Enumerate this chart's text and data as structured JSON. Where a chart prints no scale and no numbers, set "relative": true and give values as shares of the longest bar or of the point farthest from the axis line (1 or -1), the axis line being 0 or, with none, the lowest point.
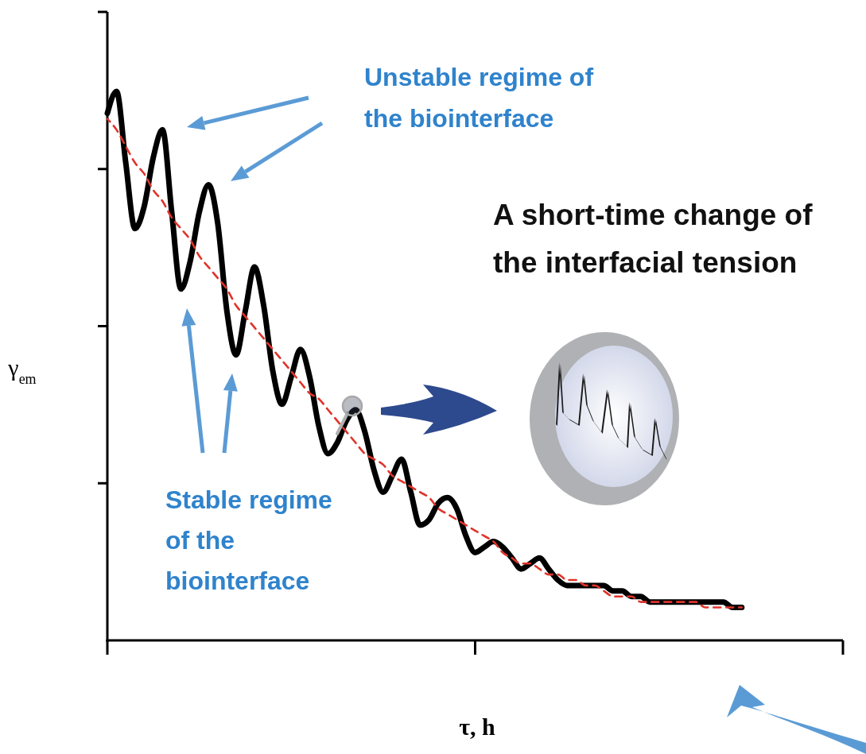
{
  "chart_data": {
    "type": "line",
    "relative": true,
    "xlabel": "τ, h",
    "ylabel": "γ$_{em}$",
    "annotations": [
      "Unstable regime of the biointerface",
      "Stable regime of the biointerface",
      "A short-time change of the interfacial tension"
    ],
    "categories": [
      null,
      null,
      null,
      null,
      null,
      null,
      null,
      null,
      null,
      null,
      null,
      null,
      null,
      null,
      null,
      null,
      null,
      null,
      null,
      null,
      null,
      null,
      null,
      null,
      null,
      null,
      null,
      null,
      null,
      null,
      null,
      null,
      null,
      null,
      null,
      null,
      null,
      null,
      null,
      null,
      null,
      null,
      null,
      null,
      null,
      null,
      null,
      null,
      null,
      null,
      null,
      null,
      null,
      null,
      null,
      null,
      null,
      null,
      null,
      null,
      null,
      null,
      null,
      null,
      null,
      null,
      null,
      null,
      null,
      null,
      null,
      null,
      null,
      null,
      null,
      null,
      null,
      null,
      null,
      null,
      null
    ],
    "series": [
      {
        "color": "#000000",
        "line_style": "solid",
        "values": [
          0.96,
          1.0,
          0.87,
          0.75,
          0.79,
          0.88,
          0.93,
          0.78,
          0.64,
          0.69,
          0.78,
          0.83,
          0.76,
          0.6,
          0.52,
          0.6,
          0.68,
          0.61,
          0.49,
          0.43,
          0.48,
          0.53,
          0.48,
          0.39,
          0.34,
          0.36,
          0.4,
          0.42,
          0.38,
          0.31,
          0.27,
          0.3,
          0.33,
          0.27,
          0.21,
          0.22,
          0.25,
          0.26,
          0.24,
          0.19,
          0.16,
          0.17,
          0.18,
          0.17,
          0.15,
          0.13,
          0.14,
          0.15,
          0.13,
          0.11,
          0.1,
          0.1,
          0.1,
          0.1,
          0.1,
          0.09,
          0.09,
          0.08,
          0.08,
          0.07,
          0.07,
          0.07,
          0.07,
          0.07,
          0.07,
          0.07,
          0.07,
          0.07,
          0.06,
          0.06,
          null,
          null,
          null,
          null,
          null,
          null,
          null,
          null,
          null,
          null,
          null
        ]
      },
      {
        "type": "line",
        "color": "#e0342b",
        "line_style": "dashed",
        "values": [
          0.95,
          0.93,
          0.9,
          0.87,
          0.85,
          0.82,
          0.8,
          0.77,
          0.75,
          0.73,
          0.7,
          0.68,
          0.66,
          0.64,
          0.61,
          0.59,
          0.57,
          0.55,
          0.53,
          0.51,
          0.49,
          0.47,
          0.45,
          0.44,
          0.42,
          0.4,
          0.38,
          0.36,
          0.34,
          0.33,
          0.32,
          0.3,
          0.29,
          0.28,
          0.27,
          0.26,
          0.24,
          0.23,
          0.22,
          0.21,
          0.2,
          0.19,
          0.18,
          0.16,
          0.15,
          0.14,
          0.14,
          0.13,
          0.12,
          0.12,
          0.11,
          0.11,
          0.1,
          0.1,
          0.09,
          0.08,
          0.08,
          0.08,
          0.07,
          0.07,
          0.07,
          0.07,
          0.07,
          0.07,
          0.07,
          0.06,
          0.06,
          0.06,
          0.06,
          0.06,
          null,
          null,
          null,
          null,
          null,
          null,
          null,
          null,
          null,
          null,
          null
        ]
      }
    ]
  }
}
